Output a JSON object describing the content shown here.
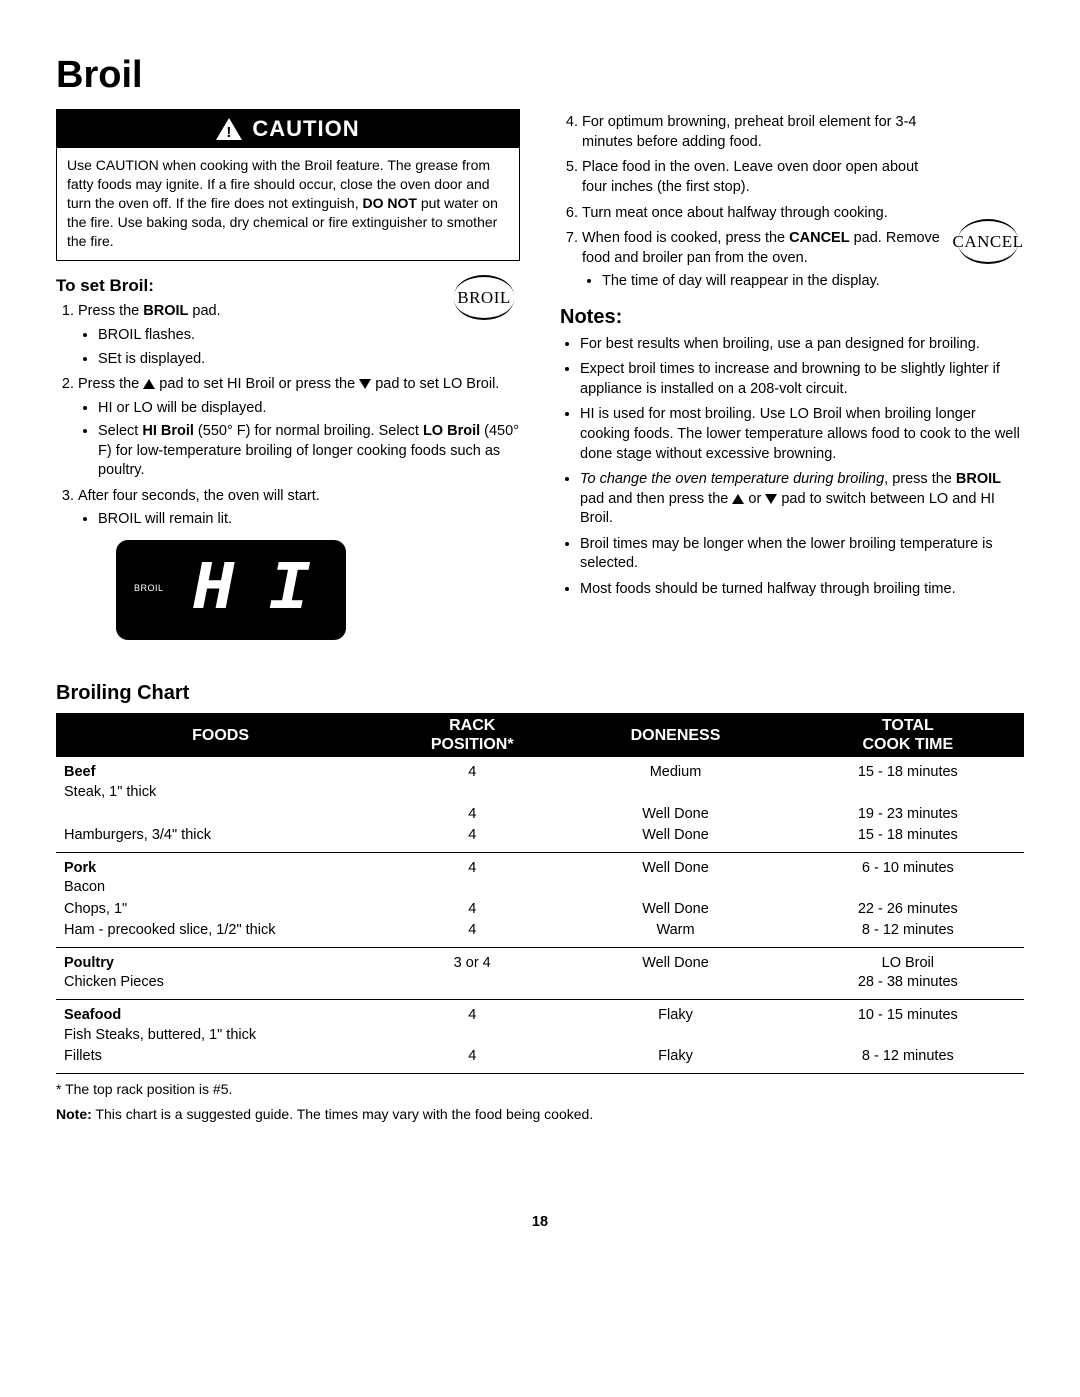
{
  "title": "Broil",
  "caution": {
    "heading": "CAUTION",
    "text_before": "Use CAUTION when cooking with the Broil feature. The grease from fatty foods may ignite. If a fire should occur, close the oven door and turn the oven off. If the fire does not extinguish, ",
    "bold": "DO NOT",
    "text_after": " put water on the fire. Use baking soda, dry chemical or fire extinguisher to smother the fire."
  },
  "to_set": {
    "heading": "To set Broil:",
    "pad_label": "BROIL",
    "step1_a": "Press the ",
    "step1_b": "BROIL",
    "step1_c": " pad.",
    "s1_b1": "BROIL flashes.",
    "s1_b2": "SEt is displayed.",
    "step2_a": "Press the ",
    "step2_b": " pad to set HI Broil or press the ",
    "step2_c": " pad to set LO Broil.",
    "s2_b1": "HI or LO will be displayed.",
    "s2_b2_a": "Select ",
    "s2_b2_b": "HI Broil",
    "s2_b2_c": " (550° F) for normal broiling. Select ",
    "s2_b2_d": "LO Broil",
    "s2_b2_e": " (450° F) for low-temperature broiling of longer cooking foods such as poultry.",
    "step3": "After four seconds, the oven will start.",
    "s3_b1": "BROIL will remain lit.",
    "display_broil": "BROIL",
    "display_hi": "H I"
  },
  "right": {
    "s4": "For optimum browning, preheat broil element for 3-4 minutes before adding food.",
    "s5": "Place food in the oven.  Leave oven door open about four inches (the first stop).",
    "s6": "Turn meat once about halfway through cooking.",
    "s7_a": "When food is cooked, press the ",
    "s7_b": "CANCEL",
    "s7_c": " pad. Remove food and broiler pan from the oven.",
    "s7_sub": "The time of day will reappear in the display.",
    "cancel_label": "CANCEL"
  },
  "notes": {
    "heading": "Notes:",
    "n1": "For best results when broiling, use a pan designed for broiling.",
    "n2": "Expect broil times to increase and browning to be slightly lighter if appliance is installed on a 208-volt circuit.",
    "n3": "HI is used for most broiling.  Use LO Broil when broiling longer cooking foods.  The lower temperature allows food to cook to the well done stage without excessive browning.",
    "n4_i": "To change the oven temperature during broiling",
    "n4_a": ", press the ",
    "n4_b": "BROIL",
    "n4_c": " pad and then press the ",
    "n4_d": " or ",
    "n4_e": " pad to switch between LO and HI Broil.",
    "n5": "Broil times may be longer when the lower broiling temperature is selected.",
    "n6": "Most foods should be turned halfway through broiling time."
  },
  "chart": {
    "heading": "Broiling Chart",
    "columns": [
      "FOODS",
      "RACK\nPOSITION*",
      "DONENESS",
      "TOTAL\nCOOK TIME"
    ],
    "col_widths": [
      "34%",
      "18%",
      "24%",
      "24%"
    ],
    "header_bg": "#000000",
    "header_fg": "#ffffff",
    "sections": [
      {
        "label": "Beef",
        "rows": [
          {
            "f": "Steak, 1\" thick",
            "r": "4",
            "d": "Medium",
            "t": "15 - 18 minutes"
          },
          {
            "f": "",
            "r": "4",
            "d": "Well Done",
            "t": "19 - 23 minutes"
          },
          {
            "f": "Hamburgers, 3/4\" thick",
            "r": "4",
            "d": "Well Done",
            "t": "15 - 18 minutes"
          }
        ]
      },
      {
        "label": "Pork",
        "rows": [
          {
            "f": "Bacon",
            "r": "4",
            "d": "Well Done",
            "t": "6 - 10 minutes"
          },
          {
            "f": "Chops, 1\"",
            "r": "4",
            "d": "Well Done",
            "t": "22 - 26 minutes"
          },
          {
            "f": "Ham  - precooked slice, 1/2\" thick",
            "r": "4",
            "d": "Warm",
            "t": "8 - 12 minutes"
          }
        ]
      },
      {
        "label": "Poultry",
        "extra_t": "LO Broil",
        "rows": [
          {
            "f": "Chicken Pieces",
            "r": "3 or 4",
            "d": "Well Done",
            "t": "28 - 38 minutes"
          }
        ]
      },
      {
        "label": "Seafood",
        "rows": [
          {
            "f": "Fish Steaks, buttered, 1\" thick",
            "r": "4",
            "d": "Flaky",
            "t": "10 - 15 minutes"
          },
          {
            "f": "Fillets",
            "r": "4",
            "d": "Flaky",
            "t": "8 - 12 minutes"
          }
        ]
      }
    ],
    "footnote1": "* The top rack position is #5.",
    "footnote2_b": "Note:",
    "footnote2": "  This chart is a suggested guide. The times may vary with the food being cooked."
  },
  "page_number": "18"
}
